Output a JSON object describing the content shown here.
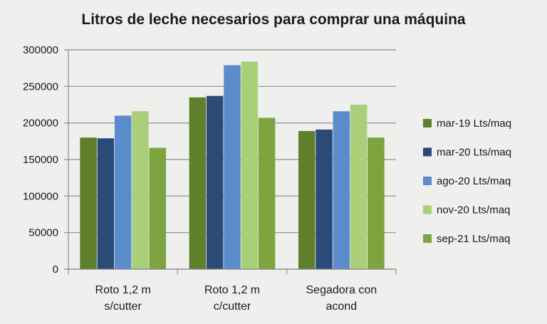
{
  "chart_data": {
    "type": "bar",
    "title": "Litros de leche necesarios para comprar una máquina",
    "xlabel": "",
    "ylabel": "",
    "ylim": [
      0,
      300000
    ],
    "yticks": [
      "0",
      "50000",
      "100000",
      "150000",
      "200000",
      "250000",
      "300000"
    ],
    "grid": true,
    "legend_position": "right",
    "categories": [
      [
        "Roto 1,2 m",
        "s/cutter"
      ],
      [
        "Roto 1,2 m",
        "c/cutter"
      ],
      [
        "Segadora con",
        "acond"
      ]
    ],
    "series": [
      {
        "name": "mar-19 Lts/maq",
        "color": "#5f7f2d",
        "values": [
          180000,
          235000,
          189000
        ]
      },
      {
        "name": "mar-20 Lts/maq",
        "color": "#2a4a78",
        "values": [
          179000,
          237000,
          191000
        ]
      },
      {
        "name": "ago-20 Lts/maq",
        "color": "#5b8ccc",
        "values": [
          210000,
          279000,
          216000
        ]
      },
      {
        "name": "nov-20 Lts/maq",
        "color": "#a9cf78",
        "values": [
          216000,
          284000,
          225000
        ]
      },
      {
        "name": "sep-21 Lts/maq",
        "color": "#7da43f",
        "values": [
          166000,
          207000,
          180000
        ]
      }
    ]
  }
}
